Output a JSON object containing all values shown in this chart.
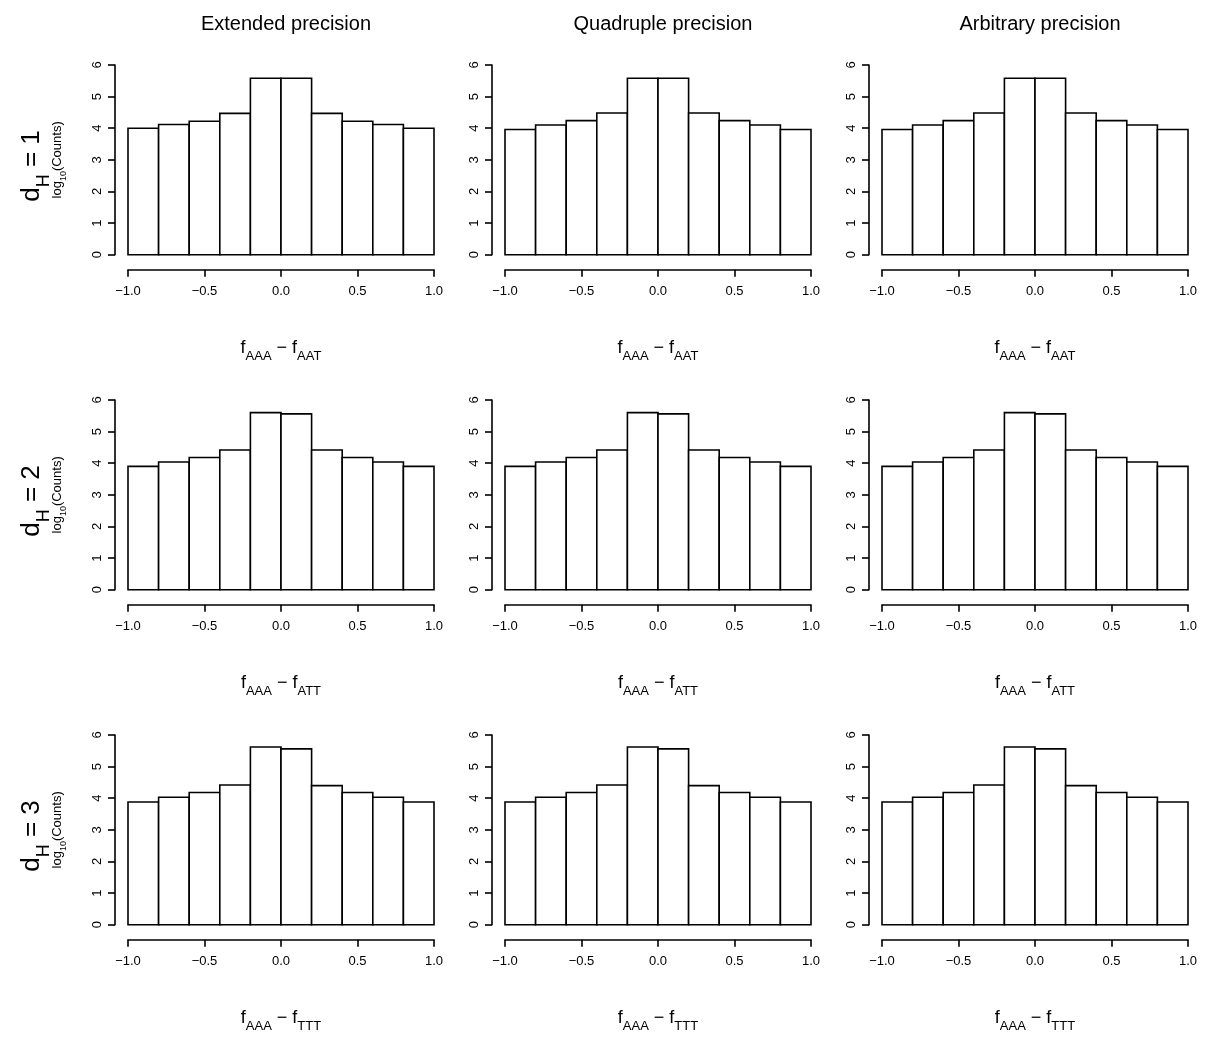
{
  "chart_data": [
    {
      "type": "histogram",
      "title": "Extended precision",
      "xlabel": "f$_{AAA}$ − f$_{AAT}$",
      "ylabel": "log$_{10}$(Counts)",
      "annotations": [
        "d$_{H}$ = 1"
      ],
      "color": "#ffffff",
      "bins": [
        -1,
        -0.8,
        -0.6,
        -0.4,
        -0.2,
        0,
        0.2,
        0.4,
        0.6,
        0.8,
        1
      ],
      "values": [
        4.0,
        4.12,
        4.22,
        4.47,
        5.58,
        5.58,
        4.47,
        4.22,
        4.12,
        4.0
      ],
      "xlim": [
        -1,
        1
      ],
      "xticks": [
        {
          "value": -1,
          "label": "−1.0"
        },
        {
          "value": -0.5,
          "label": "−0.5"
        },
        {
          "value": 0,
          "label": "0.0"
        },
        {
          "value": 0.5,
          "label": "0.5"
        },
        {
          "value": 1,
          "label": "1.0"
        }
      ],
      "ylim": [
        0,
        6
      ],
      "yticks": [
        0,
        1,
        2,
        3,
        4,
        5,
        6
      ]
    },
    {
      "type": "histogram",
      "title": "Quadruple precision",
      "xlabel": "f$_{AAA}$ − f$_{AAT}$",
      "color": "#ffffff",
      "bins": [
        -1,
        -0.8,
        -0.6,
        -0.4,
        -0.2,
        0,
        0.2,
        0.4,
        0.6,
        0.8,
        1
      ],
      "values": [
        3.96,
        4.1,
        4.24,
        4.48,
        5.58,
        5.58,
        4.48,
        4.24,
        4.1,
        3.96
      ],
      "xlim": [
        -1,
        1
      ],
      "xticks": [
        {
          "value": -1,
          "label": "−1.0"
        },
        {
          "value": -0.5,
          "label": "−0.5"
        },
        {
          "value": 0,
          "label": "0.0"
        },
        {
          "value": 0.5,
          "label": "0.5"
        },
        {
          "value": 1,
          "label": "1.0"
        }
      ],
      "ylim": [
        0,
        6
      ],
      "yticks": [
        0,
        1,
        2,
        3,
        4,
        5,
        6
      ]
    },
    {
      "type": "histogram",
      "title": "Arbitrary precision",
      "xlabel": "f$_{AAA}$ − f$_{AAT}$",
      "color": "#ffffff",
      "bins": [
        -1,
        -0.8,
        -0.6,
        -0.4,
        -0.2,
        0,
        0.2,
        0.4,
        0.6,
        0.8,
        1
      ],
      "values": [
        3.96,
        4.1,
        4.24,
        4.48,
        5.58,
        5.58,
        4.48,
        4.24,
        4.1,
        3.96
      ],
      "xlim": [
        -1,
        1
      ],
      "xticks": [
        {
          "value": -1,
          "label": "−1.0"
        },
        {
          "value": -0.5,
          "label": "−0.5"
        },
        {
          "value": 0,
          "label": "0.0"
        },
        {
          "value": 0.5,
          "label": "0.5"
        },
        {
          "value": 1,
          "label": "1.0"
        }
      ],
      "ylim": [
        0,
        6
      ],
      "yticks": [
        0,
        1,
        2,
        3,
        4,
        5,
        6
      ]
    },
    {
      "type": "histogram",
      "xlabel": "f$_{AAA}$ − f$_{ATT}$",
      "ylabel": "log$_{10}$(Counts)",
      "annotations": [
        "d$_{H}$ = 2"
      ],
      "color": "#ffffff",
      "bins": [
        -1,
        -0.8,
        -0.6,
        -0.4,
        -0.2,
        0,
        0.2,
        0.4,
        0.6,
        0.8,
        1
      ],
      "values": [
        3.9,
        4.04,
        4.18,
        4.42,
        5.6,
        5.56,
        4.42,
        4.18,
        4.04,
        3.9
      ],
      "xlim": [
        -1,
        1
      ],
      "xticks": [
        {
          "value": -1,
          "label": "−1.0"
        },
        {
          "value": -0.5,
          "label": "−0.5"
        },
        {
          "value": 0,
          "label": "0.0"
        },
        {
          "value": 0.5,
          "label": "0.5"
        },
        {
          "value": 1,
          "label": "1.0"
        }
      ],
      "ylim": [
        0,
        6
      ],
      "yticks": [
        0,
        1,
        2,
        3,
        4,
        5,
        6
      ]
    },
    {
      "type": "histogram",
      "xlabel": "f$_{AAA}$ − f$_{ATT}$",
      "color": "#ffffff",
      "bins": [
        -1,
        -0.8,
        -0.6,
        -0.4,
        -0.2,
        0,
        0.2,
        0.4,
        0.6,
        0.8,
        1
      ],
      "values": [
        3.9,
        4.04,
        4.18,
        4.42,
        5.6,
        5.56,
        4.42,
        4.18,
        4.04,
        3.9
      ],
      "xlim": [
        -1,
        1
      ],
      "xticks": [
        {
          "value": -1,
          "label": "−1.0"
        },
        {
          "value": -0.5,
          "label": "−0.5"
        },
        {
          "value": 0,
          "label": "0.0"
        },
        {
          "value": 0.5,
          "label": "0.5"
        },
        {
          "value": 1,
          "label": "1.0"
        }
      ],
      "ylim": [
        0,
        6
      ],
      "yticks": [
        0,
        1,
        2,
        3,
        4,
        5,
        6
      ]
    },
    {
      "type": "histogram",
      "xlabel": "f$_{AAA}$ − f$_{ATT}$",
      "color": "#ffffff",
      "bins": [
        -1,
        -0.8,
        -0.6,
        -0.4,
        -0.2,
        0,
        0.2,
        0.4,
        0.6,
        0.8,
        1
      ],
      "values": [
        3.9,
        4.04,
        4.18,
        4.42,
        5.6,
        5.56,
        4.42,
        4.18,
        4.04,
        3.9
      ],
      "xlim": [
        -1,
        1
      ],
      "xticks": [
        {
          "value": -1,
          "label": "−1.0"
        },
        {
          "value": -0.5,
          "label": "−0.5"
        },
        {
          "value": 0,
          "label": "0.0"
        },
        {
          "value": 0.5,
          "label": "0.5"
        },
        {
          "value": 1,
          "label": "1.0"
        }
      ],
      "ylim": [
        0,
        6
      ],
      "yticks": [
        0,
        1,
        2,
        3,
        4,
        5,
        6
      ]
    },
    {
      "type": "histogram",
      "xlabel": "f$_{AAA}$ − f$_{TTT}$",
      "ylabel": "log$_{10}$(Counts)",
      "annotations": [
        "d$_{H}$ = 3"
      ],
      "color": "#ffffff",
      "bins": [
        -1,
        -0.8,
        -0.6,
        -0.4,
        -0.2,
        0,
        0.2,
        0.4,
        0.6,
        0.8,
        1
      ],
      "values": [
        3.88,
        4.03,
        4.18,
        4.42,
        5.62,
        5.56,
        4.4,
        4.18,
        4.03,
        3.88
      ],
      "xlim": [
        -1,
        1
      ],
      "xticks": [
        {
          "value": -1,
          "label": "−1.0"
        },
        {
          "value": -0.5,
          "label": "−0.5"
        },
        {
          "value": 0,
          "label": "0.0"
        },
        {
          "value": 0.5,
          "label": "0.5"
        },
        {
          "value": 1,
          "label": "1.0"
        }
      ],
      "ylim": [
        0,
        6
      ],
      "yticks": [
        0,
        1,
        2,
        3,
        4,
        5,
        6
      ]
    },
    {
      "type": "histogram",
      "xlabel": "f$_{AAA}$ − f$_{TTT}$",
      "color": "#ffffff",
      "bins": [
        -1,
        -0.8,
        -0.6,
        -0.4,
        -0.2,
        0,
        0.2,
        0.4,
        0.6,
        0.8,
        1
      ],
      "values": [
        3.88,
        4.03,
        4.18,
        4.42,
        5.62,
        5.56,
        4.4,
        4.18,
        4.03,
        3.88
      ],
      "xlim": [
        -1,
        1
      ],
      "xticks": [
        {
          "value": -1,
          "label": "−1.0"
        },
        {
          "value": -0.5,
          "label": "−0.5"
        },
        {
          "value": 0,
          "label": "0.0"
        },
        {
          "value": 0.5,
          "label": "0.5"
        },
        {
          "value": 1,
          "label": "1.0"
        }
      ],
      "ylim": [
        0,
        6
      ],
      "yticks": [
        0,
        1,
        2,
        3,
        4,
        5,
        6
      ]
    },
    {
      "type": "histogram",
      "xlabel": "f$_{AAA}$ − f$_{TTT}$",
      "color": "#ffffff",
      "bins": [
        -1,
        -0.8,
        -0.6,
        -0.4,
        -0.2,
        0,
        0.2,
        0.4,
        0.6,
        0.8,
        1
      ],
      "values": [
        3.88,
        4.03,
        4.18,
        4.42,
        5.62,
        5.56,
        4.4,
        4.18,
        4.03,
        3.88
      ],
      "xlim": [
        -1,
        1
      ],
      "xticks": [
        {
          "value": -1,
          "label": "−1.0"
        },
        {
          "value": -0.5,
          "label": "−0.5"
        },
        {
          "value": 0,
          "label": "0.0"
        },
        {
          "value": 0.5,
          "label": "0.5"
        },
        {
          "value": 1,
          "label": "1.0"
        }
      ],
      "ylim": [
        0,
        6
      ],
      "yticks": [
        0,
        1,
        2,
        3,
        4,
        5,
        6
      ]
    }
  ]
}
